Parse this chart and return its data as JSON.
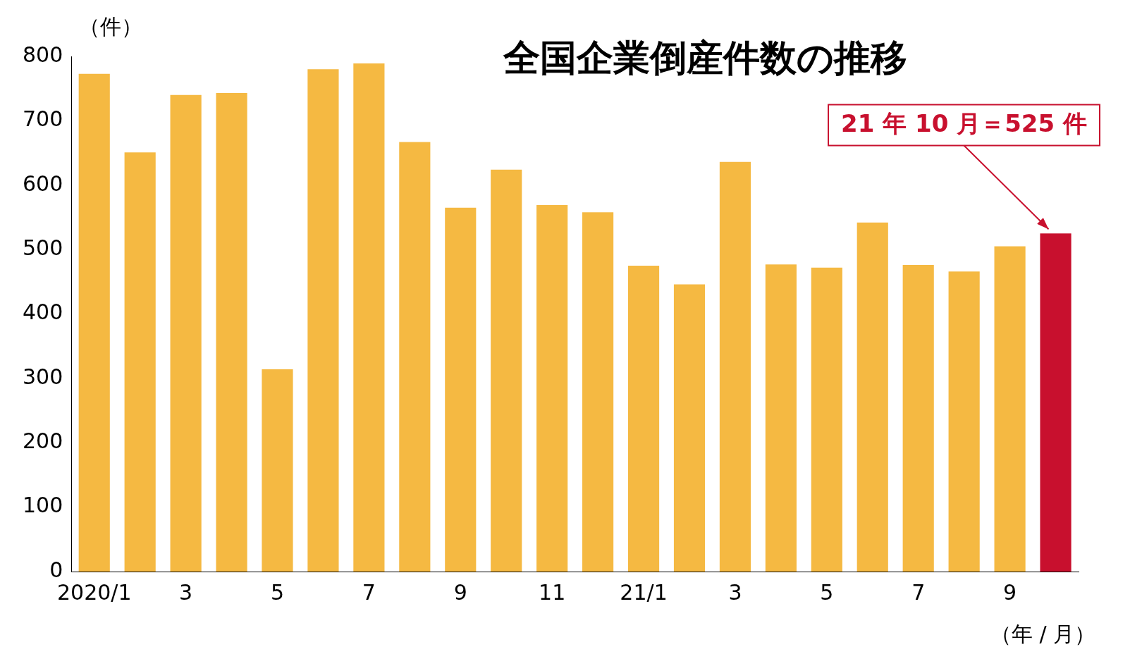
{
  "chart_data": {
    "type": "bar",
    "title": "全国企業倒産件数の推移",
    "ylabel": "（件）",
    "xlabel": "（年 / 月）",
    "categories": [
      "2020/1",
      null,
      "3",
      null,
      "5",
      null,
      "7",
      null,
      "9",
      null,
      "11",
      null,
      "21/1",
      null,
      "3",
      null,
      "5",
      null,
      "7",
      null,
      "9",
      null
    ],
    "values": [
      773,
      651,
      740,
      743,
      314,
      780,
      789,
      667,
      565,
      624,
      569,
      558,
      475,
      446,
      636,
      477,
      472,
      542,
      476,
      466,
      505,
      525
    ],
    "colors": [
      "#f5b942",
      "#f5b942",
      "#f5b942",
      "#f5b942",
      "#f5b942",
      "#f5b942",
      "#f5b942",
      "#f5b942",
      "#f5b942",
      "#f5b942",
      "#f5b942",
      "#f5b942",
      "#f5b942",
      "#f5b942",
      "#f5b942",
      "#f5b942",
      "#f5b942",
      "#f5b942",
      "#f5b942",
      "#f5b942",
      "#f5b942",
      "#c8102e"
    ],
    "ylim": [
      0,
      800
    ],
    "yticks": [
      0,
      100,
      200,
      300,
      400,
      500,
      600,
      700,
      800
    ],
    "annotations": [
      "21 年 10 月＝525 件"
    ],
    "grid": false,
    "legend": false
  }
}
